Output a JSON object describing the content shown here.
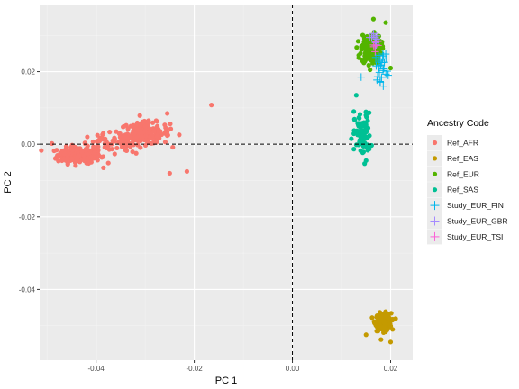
{
  "chart_data": {
    "type": "scatter",
    "xlabel": "PC 1",
    "ylabel": "PC 2",
    "xlim": [
      -0.0515,
      0.0245
    ],
    "ylim": [
      -0.0595,
      0.0385
    ],
    "x_ticks": [
      -0.04,
      -0.02,
      0.0,
      0.02
    ],
    "x_tick_labels": [
      "-0.04",
      "-0.02",
      "0.00",
      "0.02"
    ],
    "y_ticks": [
      -0.04,
      -0.02,
      0.0,
      0.02
    ],
    "y_tick_labels": [
      "-0.04",
      "-0.02",
      "0.00",
      "0.02"
    ],
    "reference_lines": {
      "x": 0.0,
      "y": 0.0,
      "style": "dashed"
    },
    "grid": true,
    "legend": {
      "title": "Ancestry Code",
      "position": "right",
      "entries": [
        {
          "label": "Ref_AFR",
          "color": "#F8766D",
          "shape": "circle"
        },
        {
          "label": "Ref_EAS",
          "color": "#C49A00",
          "shape": "circle"
        },
        {
          "label": "Ref_EUR",
          "color": "#53B400",
          "shape": "circle"
        },
        {
          "label": "Ref_SAS",
          "color": "#00C094",
          "shape": "circle"
        },
        {
          "label": "Study_EUR_FIN",
          "color": "#00B6EB",
          "shape": "cross"
        },
        {
          "label": "Study_EUR_GBR",
          "color": "#A58AFF",
          "shape": "cross"
        },
        {
          "label": "Study_EUR_TSI",
          "color": "#FB61D7",
          "shape": "cross"
        }
      ]
    },
    "series": [
      {
        "name": "Ref_AFR",
        "clusters": [
          {
            "cx": -0.0435,
            "cy": -0.003,
            "sx": 0.0022,
            "sy": 0.0011,
            "n": 200
          },
          {
            "cx": -0.03,
            "cy": 0.003,
            "sx": 0.0025,
            "sy": 0.0015,
            "n": 190
          },
          {
            "cx": -0.037,
            "cy": -0.0002,
            "sx": 0.0035,
            "sy": 0.0015,
            "n": 60
          }
        ],
        "outliers": [
          [
            -0.0165,
            0.0108
          ],
          [
            -0.0215,
            -0.0075
          ],
          [
            -0.025,
            -0.008
          ],
          [
            -0.0255,
            0.0085
          ],
          [
            -0.0385,
            -0.0065
          ],
          [
            -0.049,
            0.0002
          ]
        ]
      },
      {
        "name": "Ref_EAS",
        "clusters": [
          {
            "cx": 0.0185,
            "cy": -0.049,
            "sx": 0.0008,
            "sy": 0.0012,
            "n": 190
          }
        ],
        "outliers": [
          [
            0.015,
            -0.0525
          ],
          [
            0.02,
            -0.0545
          ]
        ]
      },
      {
        "name": "Ref_EUR",
        "clusters": [
          {
            "cx": 0.016,
            "cy": 0.0262,
            "sx": 0.001,
            "sy": 0.002,
            "n": 190
          }
        ],
        "outliers": [
          [
            0.0165,
            0.0345
          ],
          [
            0.019,
            0.0335
          ],
          [
            0.0135,
            0.0245
          ],
          [
            0.02,
            0.021
          ]
        ]
      },
      {
        "name": "Ref_SAS",
        "clusters": [
          {
            "cx": 0.0143,
            "cy": 0.0025,
            "sx": 0.0008,
            "sy": 0.003,
            "n": 100
          }
        ],
        "outliers": [
          [
            0.013,
            0.0135
          ],
          [
            0.0125,
            0.009
          ],
          [
            0.015,
            -0.0045
          ],
          [
            0.012,
            0.0015
          ]
        ]
      },
      {
        "name": "Study_EUR_FIN",
        "clusters": [
          {
            "cx": 0.0183,
            "cy": 0.0215,
            "sx": 0.0007,
            "sy": 0.002,
            "n": 25
          }
        ],
        "outliers": [
          [
            0.014,
            0.0185
          ],
          [
            0.0185,
            0.016
          ],
          [
            0.0195,
            0.019
          ],
          [
            0.0175,
            0.0245
          ]
        ]
      },
      {
        "name": "Study_EUR_GBR",
        "clusters": [
          {
            "cx": 0.0167,
            "cy": 0.029,
            "sx": 0.0005,
            "sy": 0.001,
            "n": 10
          }
        ],
        "outliers": [
          [
            0.0175,
            0.0285
          ],
          [
            0.0165,
            0.0305
          ]
        ]
      },
      {
        "name": "Study_EUR_TSI",
        "clusters": [
          {
            "cx": 0.0168,
            "cy": 0.027,
            "sx": 0.0004,
            "sy": 0.0008,
            "n": 5
          }
        ],
        "outliers": []
      }
    ]
  }
}
